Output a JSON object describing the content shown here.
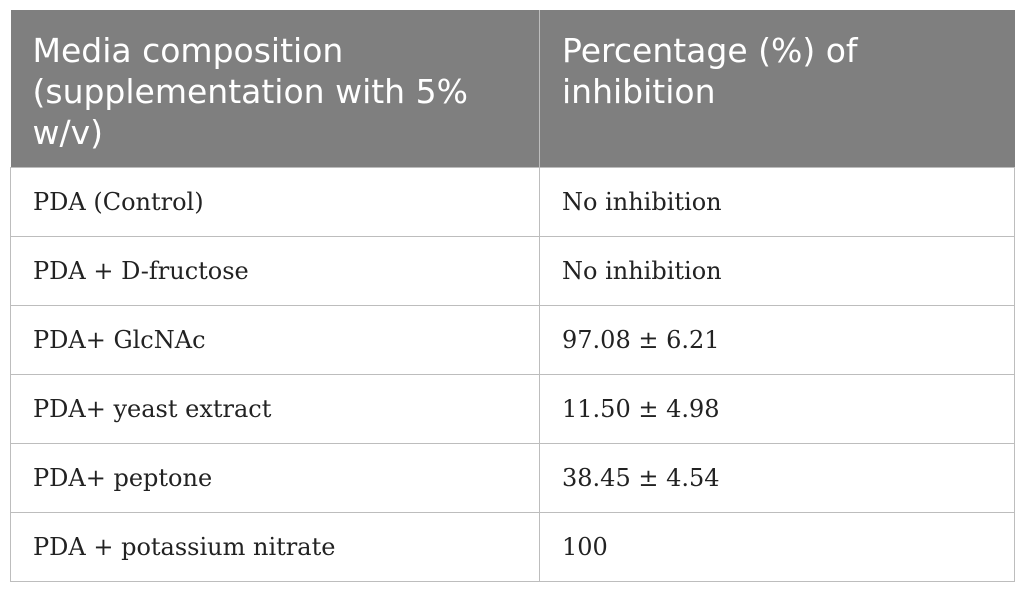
{
  "table": {
    "headers": [
      "Media composition (supplementation with 5% w/v)",
      "Percentage (%) of inhibition"
    ],
    "rows": [
      [
        "PDA (Control)",
        "No inhibition"
      ],
      [
        "PDA + D-fructose",
        "No inhibition"
      ],
      [
        "PDA+ GlcNAc",
        "97.08 ± 6.21"
      ],
      [
        "PDA+ yeast extract",
        "11.50 ± 4.98"
      ],
      [
        "PDA+ peptone",
        "38.45 ± 4.54"
      ],
      [
        "PDA + potassium nitrate",
        "100"
      ]
    ],
    "colors": {
      "header_background": "#7f7f7f",
      "header_text": "#ffffff",
      "border": "#bdbdbd"
    }
  }
}
